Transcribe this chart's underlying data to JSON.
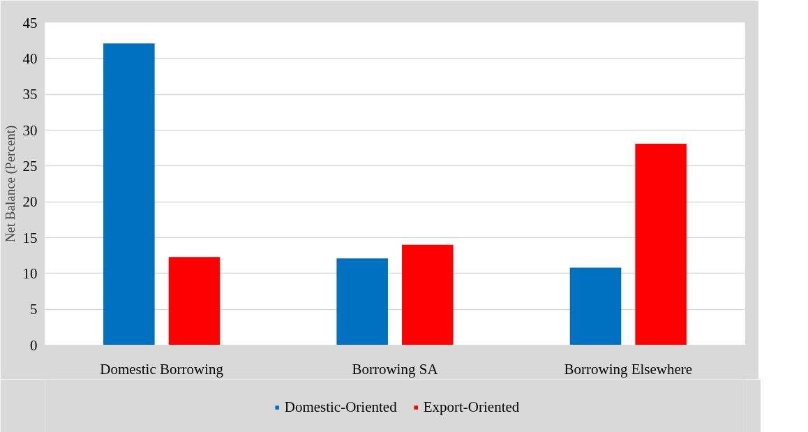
{
  "chart_data": {
    "type": "bar",
    "ylabel": "Net Balance (Percent)",
    "categories": [
      "Domestic Borrowing",
      "Borrowing SA",
      "Borrowing Elsewhere"
    ],
    "series": [
      {
        "name": "Domestic-Oriented",
        "color": "#0070c0",
        "values": [
          42.1,
          12.1,
          10.8
        ]
      },
      {
        "name": "Export-Oriented",
        "color": "#ff0000",
        "values": [
          12.3,
          14.0,
          28.1
        ]
      }
    ],
    "ylim": [
      0,
      45
    ],
    "yticks": [
      0,
      5,
      10,
      15,
      20,
      25,
      30,
      35,
      40,
      45
    ],
    "grid": "y",
    "legend": "bottom"
  }
}
